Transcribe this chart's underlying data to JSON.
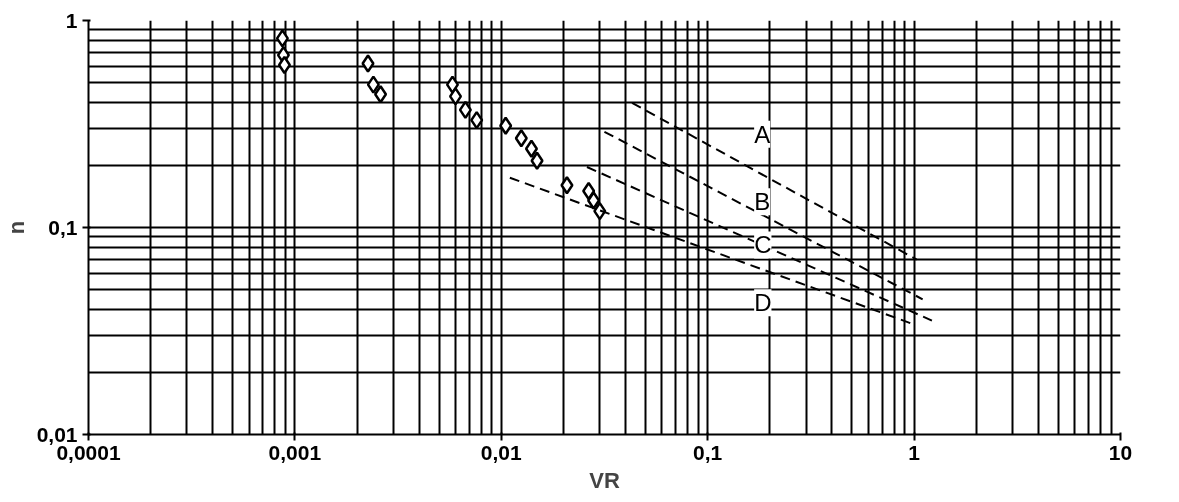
{
  "chart_data": {
    "type": "scatter",
    "xlabel": "VR",
    "ylabel": "n",
    "log": "xy",
    "grid": true,
    "xlim": [
      0.0001,
      10
    ],
    "ylim": [
      0.01,
      1
    ],
    "xticks": [
      {
        "value": 0.0001,
        "label": "0,0001"
      },
      {
        "value": 0.001,
        "label": "0,001"
      },
      {
        "value": 0.01,
        "label": "0,01"
      },
      {
        "value": 0.1,
        "label": "0,1"
      },
      1,
      10
    ],
    "yticks": [
      {
        "value": 0.01,
        "label": "0,01"
      },
      {
        "value": 0.1,
        "label": "0,1"
      },
      1
    ],
    "series": [
      {
        "marker": "diamond",
        "color": "#000000",
        "x": [
          0.00087,
          0.00088,
          0.00089,
          0.00226,
          0.0024,
          0.0026,
          0.0058,
          0.006,
          0.0067,
          0.0076,
          0.0105,
          0.0125,
          0.014,
          0.0149,
          0.0208,
          0.0265,
          0.028,
          0.03
        ],
        "values": [
          0.82,
          0.68,
          0.61,
          0.62,
          0.49,
          0.44,
          0.49,
          0.43,
          0.37,
          0.33,
          0.31,
          0.27,
          0.24,
          0.21,
          0.16,
          0.15,
          0.135,
          0.12
        ]
      },
      {
        "type": "line",
        "line_style": "dashed",
        "color": "#000000",
        "x": [
          0.043,
          1.03
        ],
        "values": [
          0.4,
          0.07
        ]
      },
      {
        "type": "line",
        "line_style": "dashed",
        "color": "#000000",
        "x": [
          0.0316,
          1.1
        ],
        "values": [
          0.29,
          0.045
        ]
      },
      {
        "type": "line",
        "line_style": "dashed",
        "color": "#000000",
        "x": [
          0.026,
          1.22
        ],
        "values": [
          0.196,
          0.0355
        ]
      },
      {
        "type": "line",
        "line_style": "dashed",
        "color": "#000000",
        "x": [
          0.011,
          1.0
        ],
        "values": [
          0.174,
          0.034
        ]
      }
    ],
    "annotations": [
      "A",
      "B",
      "C",
      "D"
    ]
  }
}
